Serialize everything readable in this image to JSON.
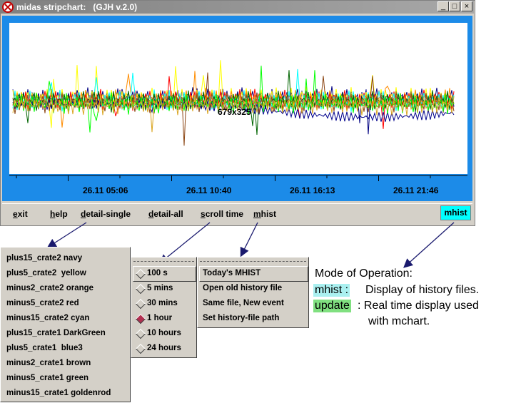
{
  "window": {
    "title": "midas stripchart:   (GJH v.2.0)",
    "controls": [
      "minimize",
      "maximize",
      "close"
    ]
  },
  "plot": {
    "size_label": "679x325",
    "time_ticks": [
      "26.11 05:06",
      "26.11 10:40",
      "26.11 16:13",
      "26.11 21:46"
    ],
    "background": "#1c8be8",
    "trace_colors": [
      "#000080",
      "#ffff00",
      "#ff8c00",
      "#ff0000",
      "#00ffff",
      "#006400",
      "#00008b",
      "#8b4513",
      "#00ff00",
      "#daa520"
    ]
  },
  "menubar": {
    "items": [
      {
        "label": "exit",
        "u": "e"
      },
      {
        "label": "help",
        "u": "h"
      },
      {
        "label": "detail-single",
        "u": "d"
      },
      {
        "label": "detail-all",
        "u": "d"
      },
      {
        "label": "scroll time",
        "u": "s"
      },
      {
        "label": "mhist",
        "u": "m"
      }
    ],
    "mode_button": "mhist",
    "mode_color": "#00ffff"
  },
  "channels": [
    "plus15_crate2 navy",
    "plus5_crate2  yellow",
    "minus2_crate2 orange",
    "minus5_crate2 red",
    "minus15_crate2 cyan",
    "plus15_crate1 DarkGreen",
    "plus5_crate1  blue3",
    "minus2_crate1 brown",
    "minus5_crate1 green",
    "minus15_crate1 goldenrod"
  ],
  "scroll_menu": {
    "options": [
      "100 s",
      "5 mins",
      "30 mins",
      "1 hour",
      "10 hours",
      "24 hours"
    ],
    "selected": "1 hour"
  },
  "mhist_menu": {
    "options": [
      "Today's MHIST",
      "Open old history file",
      "Same file, New event",
      "Set history-file path"
    ]
  },
  "annotation": {
    "heading": "Mode of Operation:",
    "mhist_tag": "mhist :",
    "mhist_desc": "Display of history files.",
    "update_tag": "update",
    "update_desc": ": Real time display used",
    "update_desc2": "with mchart.",
    "mhist_color": "#aaf0f0",
    "update_color": "#80e080"
  }
}
